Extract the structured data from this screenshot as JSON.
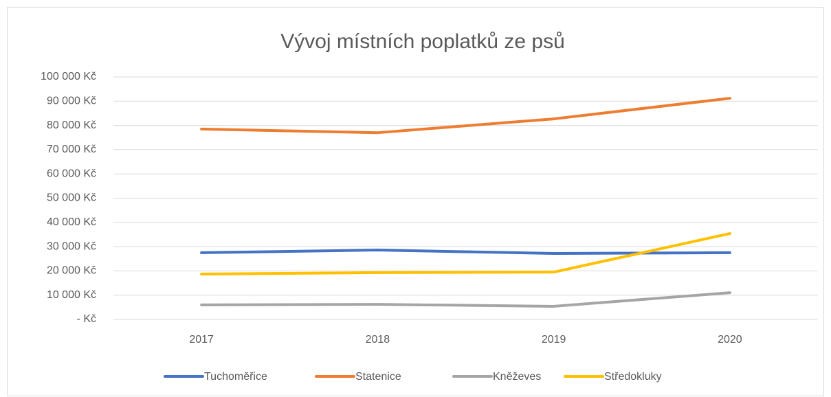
{
  "chart_data": {
    "type": "line",
    "title": "Vývoj místních poplatků ze psů",
    "categories": [
      "2017",
      "2018",
      "2019",
      "2020"
    ],
    "series": [
      {
        "name": "Tuchoměřice",
        "color": "#4472c4",
        "values": [
          27500,
          28600,
          27200,
          27500
        ]
      },
      {
        "name": "Statenice",
        "color": "#ed7d31",
        "values": [
          78500,
          77000,
          82700,
          91200
        ]
      },
      {
        "name": "Kněževes",
        "color": "#a5a5a5",
        "values": [
          6000,
          6200,
          5400,
          11000
        ]
      },
      {
        "name": "Středokluky",
        "color": "#ffc000",
        "values": [
          18700,
          19300,
          19500,
          35400
        ]
      }
    ],
    "ylim": [
      0,
      100000
    ],
    "yticks": [
      {
        "value": 0,
        "label": "-   Kč"
      },
      {
        "value": 10000,
        "label": "10 000 Kč"
      },
      {
        "value": 20000,
        "label": "20 000 Kč"
      },
      {
        "value": 30000,
        "label": "30 000 Kč"
      },
      {
        "value": 40000,
        "label": "40 000 Kč"
      },
      {
        "value": 50000,
        "label": "50 000 Kč"
      },
      {
        "value": 60000,
        "label": "60 000 Kč"
      },
      {
        "value": 70000,
        "label": "70 000 Kč"
      },
      {
        "value": 80000,
        "label": "80 000 Kč"
      },
      {
        "value": 90000,
        "label": "90 000 Kč"
      },
      {
        "value": 100000,
        "label": "100 000 Kč"
      }
    ],
    "grid": true,
    "legend": "bottom"
  }
}
